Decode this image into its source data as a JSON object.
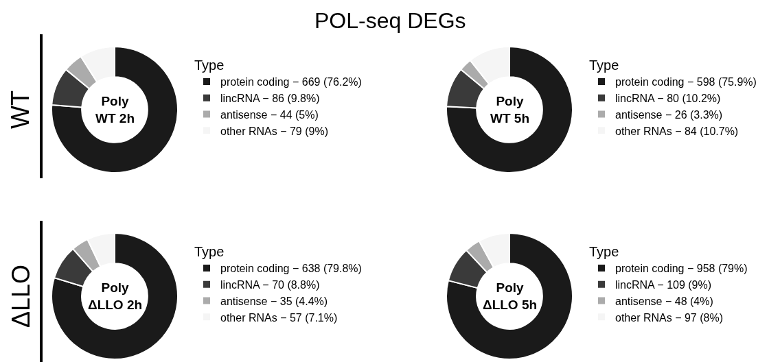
{
  "chart_data": [
    {
      "type": "donut",
      "title": "POL-seq DEGs",
      "ylabel": "WT",
      "legend_title": "Type",
      "legend": "right",
      "annotations": [
        "Poly\nWT 2h"
      ],
      "categories": [
        "protein coding − 669 (76.2%)",
        "lincRNA − 86 (9.8%)",
        "antisense − 44 (5%)",
        "other RNAs − 79 (9%)"
      ],
      "values": [
        76.2,
        9.8,
        5,
        9
      ],
      "colors": [
        "#1a1a1a",
        "#3a3a3a",
        "#ababab",
        "#f5f5f5"
      ]
    },
    {
      "type": "donut",
      "legend_title": "Type",
      "legend": "right",
      "annotations": [
        "Poly\nWT 5h"
      ],
      "categories": [
        "protein coding − 598 (75.9%)",
        "lincRNA − 80 (10.2%)",
        "antisense − 26 (3.3%)",
        "other RNAs − 84 (10.7%)"
      ],
      "values": [
        75.9,
        10.2,
        3.3,
        10.7
      ],
      "colors": [
        "#1a1a1a",
        "#3a3a3a",
        "#ababab",
        "#f5f5f5"
      ]
    },
    {
      "type": "donut",
      "ylabel": "ΔLLO",
      "legend_title": "Type",
      "legend": "right",
      "annotations": [
        "Poly\nΔLLO 2h"
      ],
      "categories": [
        "protein coding − 638 (79.8%)",
        "lincRNA − 70 (8.8%)",
        "antisense − 35 (4.4%)",
        "other RNAs − 57 (7.1%)"
      ],
      "values": [
        79.8,
        8.8,
        4.4,
        7.1
      ],
      "colors": [
        "#1a1a1a",
        "#3a3a3a",
        "#ababab",
        "#f5f5f5"
      ]
    },
    {
      "type": "donut",
      "legend_title": "Type",
      "legend": "right",
      "annotations": [
        "Poly\nΔLLO 5h"
      ],
      "categories": [
        "protein coding − 958 (79%)",
        "lincRNA − 109 (9%)",
        "antisense − 48 (4%)",
        "other RNAs − 97 (8%)"
      ],
      "values": [
        79,
        9,
        4,
        8
      ],
      "colors": [
        "#1a1a1a",
        "#3a3a3a",
        "#ababab",
        "#f5f5f5"
      ]
    }
  ]
}
